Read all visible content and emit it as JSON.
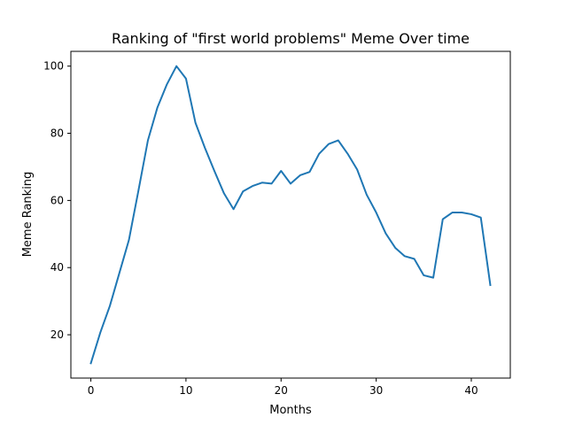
{
  "chart_data": {
    "type": "line",
    "title": "Ranking of \"first world problems\" Meme Over time",
    "xlabel": "Months",
    "ylabel": "Meme Ranking",
    "xlim": [
      -2.1,
      44.1
    ],
    "ylim": [
      7.1,
      104.4
    ],
    "xticks": [
      0,
      10,
      20,
      30,
      40
    ],
    "yticks": [
      20,
      40,
      60,
      80,
      100
    ],
    "grid": false,
    "legend": "none",
    "colors": {
      "line": "#1f77b4"
    },
    "series": [
      {
        "x": [
          0,
          1,
          2,
          3,
          4,
          5,
          6,
          7,
          8,
          9,
          10,
          11,
          12,
          13,
          14,
          15,
          16,
          17,
          18,
          19,
          20,
          21,
          22,
          23,
          24,
          25,
          26,
          27,
          28,
          29,
          30,
          31,
          32,
          33,
          34,
          35,
          36,
          37,
          38,
          39,
          40,
          41,
          42
        ],
        "values": [
          11.5,
          20.7,
          28.6,
          38.4,
          48.2,
          62.9,
          77.9,
          87.7,
          94.6,
          100,
          96.3,
          83.1,
          75.6,
          68.7,
          62.1,
          57.4,
          62.7,
          64.3,
          65.3,
          65,
          68.8,
          65,
          67.5,
          68.5,
          73.9,
          76.8,
          77.9,
          73.9,
          69.2,
          61.7,
          56.4,
          50.2,
          45.9,
          43.4,
          42.6,
          37.7,
          37,
          54.4,
          56.4,
          56.4,
          55.9,
          54.9,
          34.8
        ]
      }
    ]
  }
}
